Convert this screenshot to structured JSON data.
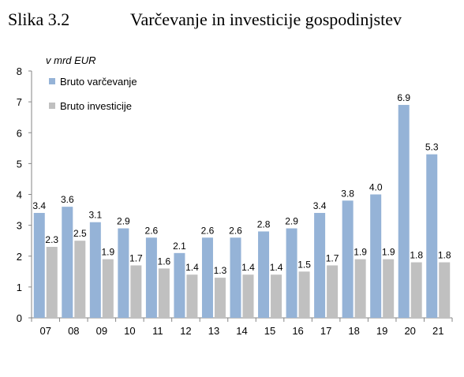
{
  "figure": {
    "number": "Slika 3.2",
    "title": "Varčevanje in investicije gospodinjstev"
  },
  "chart_data": {
    "type": "bar",
    "unit_label": "v mrd EUR",
    "categories": [
      "07",
      "08",
      "09",
      "10",
      "11",
      "12",
      "13",
      "14",
      "15",
      "16",
      "17",
      "18",
      "19",
      "20",
      "21"
    ],
    "series": [
      {
        "name": "Bruto varčevanje",
        "color": "#95b3d7",
        "values": [
          3.4,
          3.6,
          3.1,
          2.9,
          2.6,
          2.1,
          2.6,
          2.6,
          2.8,
          2.9,
          3.4,
          3.8,
          4.0,
          6.9,
          5.3
        ],
        "labels": [
          "3.4",
          "3.6",
          "3.1",
          "2.9",
          "2.6",
          "2.1",
          "2.6",
          "2.6",
          "2.8",
          "2.9",
          "3.4",
          "3.8",
          "4.0",
          "6.9",
          "5.3"
        ]
      },
      {
        "name": "Bruto investicije",
        "color": "#c0c0c0",
        "values": [
          2.3,
          2.5,
          1.9,
          1.7,
          1.6,
          1.4,
          1.3,
          1.4,
          1.4,
          1.5,
          1.7,
          1.9,
          1.9,
          1.8,
          1.8
        ],
        "labels": [
          "2.3",
          "2.5",
          "1.9",
          "1.7",
          "1.6",
          "1.4",
          "1.3",
          "1.4",
          "1.4",
          "1.5",
          "1.7",
          "1.9",
          "1.9",
          "1.8",
          "1.8"
        ]
      }
    ],
    "yticks": [
      "0",
      "1",
      "2",
      "3",
      "4",
      "5",
      "6",
      "7",
      "8"
    ],
    "ylim": [
      0,
      8
    ],
    "grid": false,
    "legend_position": "top-left"
  }
}
